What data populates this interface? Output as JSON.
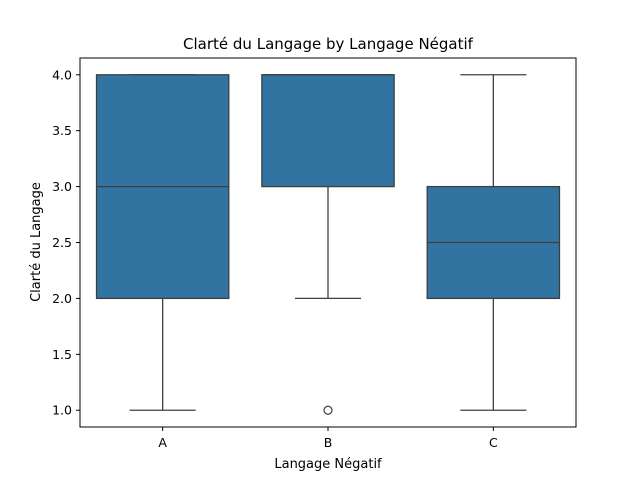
{
  "chart_data": {
    "type": "box",
    "title": "Clarté du Langage by Langage Négatif",
    "xlabel": "Langage Négatif",
    "ylabel": "Clarté du Langage",
    "categories": [
      "A",
      "B",
      "C"
    ],
    "ylim": [
      0.85,
      4.15
    ],
    "yticks": [
      1.0,
      1.5,
      2.0,
      2.5,
      3.0,
      3.5,
      4.0
    ],
    "ytick_labels": [
      "1.0",
      "1.5",
      "2.0",
      "2.5",
      "3.0",
      "3.5",
      "4.0"
    ],
    "grid": false,
    "box_color": "#3274a1",
    "line_color": "#3f3f3f",
    "boxes": [
      {
        "category": "A",
        "whisker_low": 1.0,
        "q1": 2.0,
        "median": 3.0,
        "q3": 4.0,
        "whisker_high": 4.0,
        "outliers": []
      },
      {
        "category": "B",
        "whisker_low": 2.0,
        "q1": 3.0,
        "median": 4.0,
        "q3": 4.0,
        "whisker_high": 4.0,
        "outliers": [
          1.0
        ]
      },
      {
        "category": "C",
        "whisker_low": 1.0,
        "q1": 2.0,
        "median": 2.5,
        "q3": 3.0,
        "whisker_high": 4.0,
        "outliers": []
      }
    ]
  }
}
